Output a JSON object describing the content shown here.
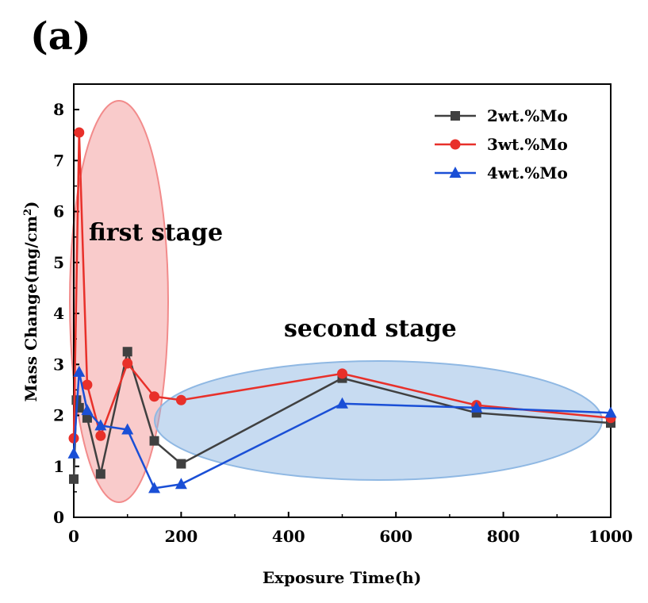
{
  "panel_label": "(a)",
  "chart_data": {
    "type": "line",
    "title": "",
    "xlabel": "Exposure Time(h)",
    "ylabel_main": "Mass Change(mg/cm",
    "ylabel_sup": "2",
    "ylabel_close": ")",
    "xlim": [
      0,
      1000
    ],
    "ylim": [
      0,
      8.5
    ],
    "xticks": [
      "0",
      "200",
      "400",
      "600",
      "800",
      "1000"
    ],
    "yticks": [
      "0",
      "1",
      "2",
      "3",
      "4",
      "5",
      "6",
      "7",
      "8"
    ],
    "grid": false,
    "legend_position": "top-right",
    "series": [
      {
        "name": "2wt.%Mo",
        "color": "#404040",
        "marker": "square",
        "x": [
          0,
          5,
          10,
          25,
          50,
          100,
          150,
          200,
          500,
          750,
          1000
        ],
        "y": [
          0.75,
          2.3,
          2.15,
          1.95,
          0.85,
          3.25,
          1.5,
          1.05,
          2.73,
          2.05,
          1.85
        ]
      },
      {
        "name": "3wt.%Mo",
        "color": "#e8302a",
        "marker": "circle",
        "x": [
          0,
          10,
          25,
          50,
          100,
          150,
          200,
          500,
          750,
          1000
        ],
        "y": [
          1.55,
          7.55,
          2.6,
          1.6,
          3.02,
          2.37,
          2.3,
          2.82,
          2.2,
          1.95
        ]
      },
      {
        "name": "4wt.%Mo",
        "color": "#1a4fd6",
        "marker": "triangle",
        "x": [
          0,
          10,
          25,
          50,
          100,
          150,
          200,
          500,
          750,
          1000
        ],
        "y": [
          1.25,
          2.85,
          2.1,
          1.8,
          1.72,
          0.57,
          0.65,
          2.23,
          2.15,
          2.05
        ]
      }
    ],
    "annotations": [
      {
        "text": "first stage",
        "color": "#f28b8b"
      },
      {
        "text": "second stage",
        "color": "#8fb8e3"
      }
    ]
  }
}
